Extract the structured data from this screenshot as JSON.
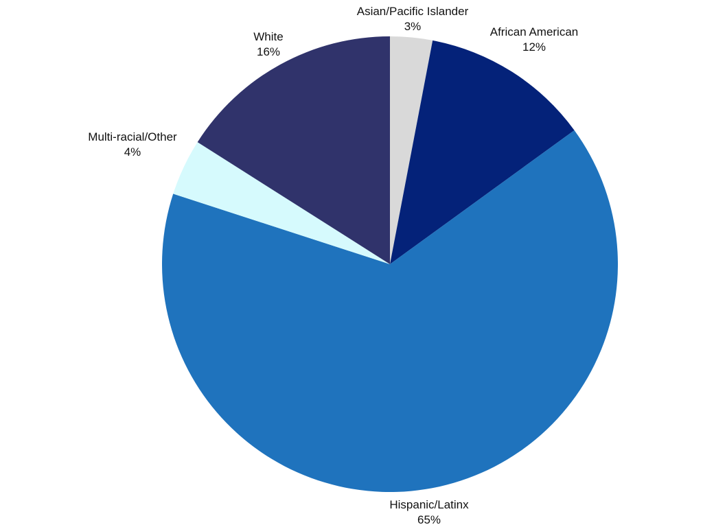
{
  "chart_data": {
    "type": "pie",
    "start_angle_deg": 0,
    "direction": "clockwise",
    "slices": [
      {
        "label": "Asian/Pacific Islander",
        "value": 3,
        "value_label": "3%",
        "color": "#d9d9d9"
      },
      {
        "label": "African American",
        "value": 12,
        "value_label": "12%",
        "color": "#042279"
      },
      {
        "label": "Hispanic/Latinx",
        "value": 65,
        "value_label": "65%",
        "color": "#1f73bd"
      },
      {
        "label": "Multi-racial/Other",
        "value": 4,
        "value_label": "4%",
        "color": "#d6fafd"
      },
      {
        "label": "White",
        "value": 16,
        "value_label": "16%",
        "color": "#30336b"
      }
    ]
  }
}
